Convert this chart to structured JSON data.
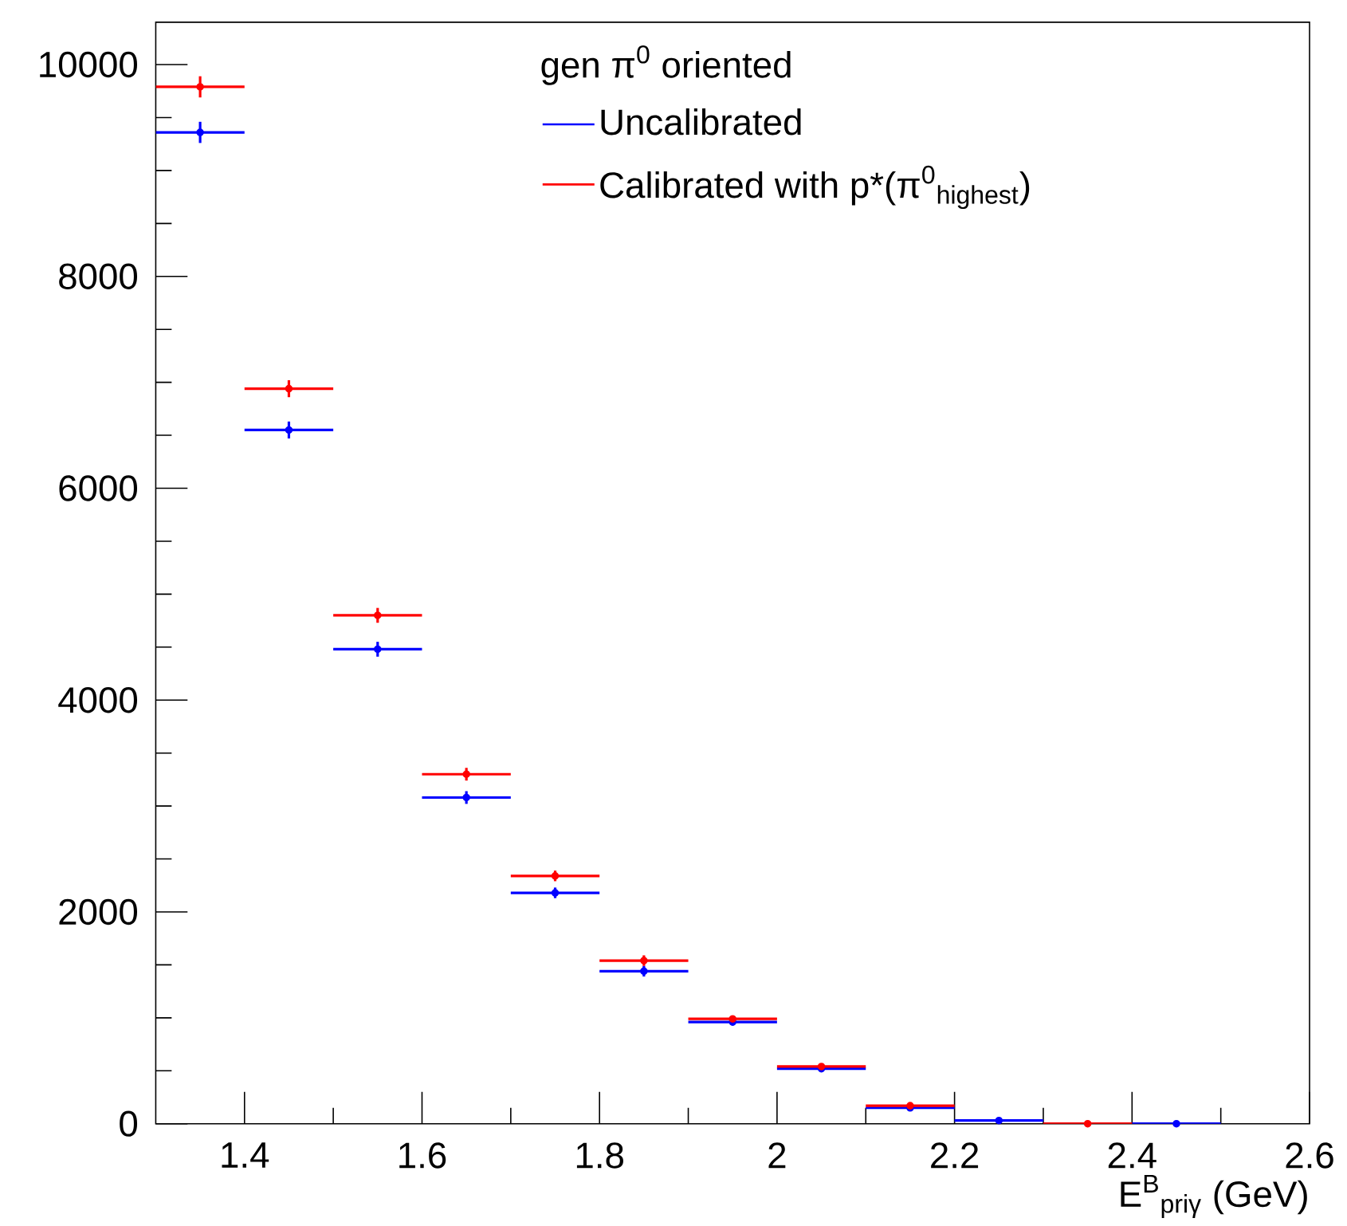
{
  "chart_data": {
    "type": "scatter",
    "series": [
      {
        "name": "Uncalibrated",
        "color": "#0000ff",
        "x": [
          1.35,
          1.45,
          1.55,
          1.65,
          1.75,
          1.85,
          1.95,
          2.05,
          2.15,
          2.25,
          null,
          2.45
        ],
        "values": [
          9360,
          6550,
          4480,
          3080,
          2180,
          1440,
          960,
          520,
          150,
          30,
          null,
          0
        ],
        "xerrors": [
          0.05,
          0.05,
          0.05,
          0.05,
          0.05,
          0.05,
          0.05,
          0.05,
          0.05,
          0.05,
          null,
          0.05
        ],
        "errors": [
          100,
          80,
          70,
          60,
          50,
          50,
          30,
          20,
          null,
          null,
          null,
          null
        ]
      },
      {
        "name": "Calibrated with p*(π$^{0}$$_{highest}$)",
        "color": "#ff0000",
        "x": [
          1.35,
          1.45,
          1.55,
          1.65,
          1.75,
          1.85,
          1.95,
          2.05,
          2.15,
          null,
          2.35,
          null
        ],
        "values": [
          9790,
          6940,
          4800,
          3300,
          2340,
          1540,
          990,
          540,
          170,
          null,
          0,
          null
        ],
        "xerrors": [
          0.05,
          0.05,
          0.05,
          0.05,
          0.05,
          0.05,
          0.05,
          0.05,
          0.05,
          null,
          0.05,
          null
        ],
        "errors": [
          100,
          80,
          70,
          60,
          50,
          50,
          30,
          20,
          null,
          null,
          null,
          null
        ]
      }
    ],
    "xlabel": "E$^{B}$$_{priγ}$ (GeV)",
    "legend_title": "gen π$^{0}$ oriented",
    "xlim": [
      1.3,
      2.6
    ],
    "ylim": [
      0,
      10400
    ],
    "xticks": [
      1.4,
      1.6,
      1.8,
      2,
      2.2,
      2.4,
      2.6
    ],
    "yticks": [
      0,
      2000,
      4000,
      6000,
      8000,
      10000
    ],
    "legend": "top right"
  }
}
